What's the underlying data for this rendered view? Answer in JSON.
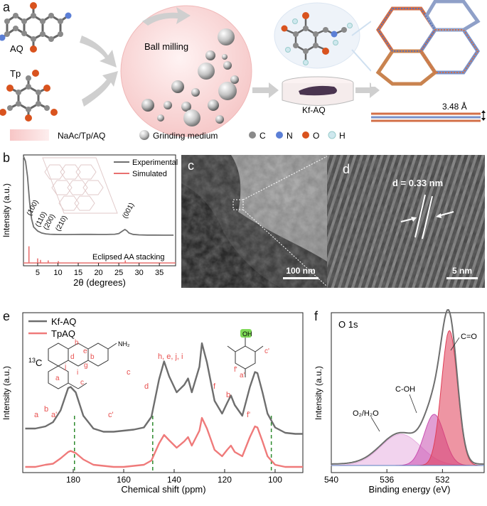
{
  "figure": {
    "panel_a": {
      "label": "a",
      "mol_aq": "AQ",
      "mol_tp": "Tp",
      "process": "Ball milling",
      "product": "Kf-AQ",
      "stack_spacing": "3.48 Å",
      "legend": {
        "mixture": "NaAc/Tp/AQ",
        "medium": "Grinding medium",
        "atoms": [
          "C",
          "N",
          "O",
          "H"
        ]
      },
      "colors": {
        "C": "#8a8a8a",
        "N": "#5b7fd6",
        "O": "#d9531e",
        "H": "#cfe8ee"
      }
    },
    "panel_b": {
      "label": "b"
    },
    "panel_c": {
      "label": "c",
      "scalebar": "100 nm"
    },
    "panel_d": {
      "label": "d",
      "spacing": "d = 0.33 nm",
      "scalebar": "5 nm"
    },
    "panel_e": {
      "label": "e",
      "nucleus": "13C",
      "structure_label_c": "c",
      "peak_labels": [
        "a",
        "b",
        "a'",
        "c'",
        "c",
        "d",
        "h, e, j, i",
        "f",
        "b",
        "f'"
      ],
      "atom_labels": [
        "h",
        "e",
        "b",
        "d",
        "g",
        "j",
        "i",
        "a",
        "c",
        "f'",
        "a'",
        "c'"
      ],
      "oh_label": "OH",
      "nh2_label": "NH₂"
    },
    "panel_f": {
      "label": "f",
      "region": "O 1s"
    }
  },
  "chart_data": [
    {
      "type": "line",
      "panel": "b",
      "xlabel": "2θ (degrees)",
      "ylabel": "Intensity (a.u.)",
      "xlim": [
        1.5,
        39
      ],
      "xticks": [
        5,
        10,
        15,
        20,
        25,
        30,
        35
      ],
      "legend_position": "top-right",
      "series": [
        {
          "name": "Experimental",
          "color": "#6f6f6f",
          "x": [
            1.5,
            2.0,
            2.5,
            3.0,
            3.5,
            4.0,
            5.0,
            6.0,
            7.0,
            8.0,
            9.0,
            10.0,
            12.0,
            14.0,
            16.0,
            18.0,
            20.0,
            22.0,
            24.0,
            25.0,
            26.0,
            26.5,
            27.0,
            27.5,
            28.5,
            30.0,
            32.0,
            34.0,
            36.0,
            38.5
          ],
          "y": [
            1.0,
            0.95,
            0.8,
            0.55,
            0.38,
            0.3,
            0.26,
            0.24,
            0.232,
            0.228,
            0.227,
            0.226,
            0.225,
            0.226,
            0.227,
            0.227,
            0.226,
            0.226,
            0.228,
            0.235,
            0.262,
            0.275,
            0.262,
            0.24,
            0.227,
            0.222,
            0.22,
            0.22,
            0.219,
            0.219
          ]
        },
        {
          "name": "Simulated",
          "color": "#e8706f",
          "peaks_x": [
            2.85,
            5.0,
            5.7,
            7.6,
            10.1,
            26.6
          ],
          "peaks_y": [
            0.165,
            0.045,
            0.03,
            0.025,
            0.018,
            0.025
          ]
        }
      ],
      "peak_labels": [
        {
          "x": 2.9,
          "text": "(100)"
        },
        {
          "x": 5.0,
          "text": "(110)"
        },
        {
          "x": 7.0,
          "text": "(200)"
        },
        {
          "x": 10.0,
          "text": "(210)"
        },
        {
          "x": 26.5,
          "text": "(001)"
        }
      ],
      "annotation": "Eclipsed AA stacking"
    },
    {
      "type": "line",
      "panel": "e",
      "xlabel": "Chemical shift (ppm)",
      "ylabel": "Intensity (a.u.)",
      "xlim": [
        200,
        89
      ],
      "xticks": [
        180,
        160,
        140,
        120,
        100
      ],
      "legend_position": "top-left",
      "series": [
        {
          "name": "Kf-AQ",
          "color": "#6e6e6e",
          "x": [
            199,
            195,
            191,
            188,
            185,
            182,
            181,
            179,
            176,
            172,
            168,
            164,
            160,
            156,
            152,
            149,
            146,
            144,
            142,
            139,
            136,
            134.5,
            133,
            130,
            129,
            127,
            124,
            121,
            119,
            117.5,
            116,
            113,
            110,
            108,
            107,
            105,
            103,
            100,
            96,
            92,
            89
          ],
          "y": [
            0.16,
            0.16,
            0.18,
            0.22,
            0.33,
            0.54,
            0.55,
            0.5,
            0.28,
            0.16,
            0.13,
            0.13,
            0.14,
            0.15,
            0.17,
            0.27,
            0.62,
            0.79,
            0.65,
            0.5,
            0.57,
            0.63,
            0.5,
            0.74,
            0.96,
            0.78,
            0.42,
            0.3,
            0.4,
            0.47,
            0.38,
            0.28,
            0.55,
            0.69,
            0.68,
            0.5,
            0.3,
            0.17,
            0.12,
            0.11,
            0.11
          ]
        },
        {
          "name": "TpAQ",
          "color": "#ef7a7a",
          "x": [
            199,
            195,
            191,
            188,
            185,
            182,
            181,
            179,
            176,
            172,
            168,
            164,
            160,
            156,
            152,
            149,
            146,
            144,
            142,
            139,
            136,
            134.5,
            133,
            130,
            129,
            127,
            124,
            121,
            119,
            117.5,
            116,
            113,
            110,
            108,
            107,
            105,
            103,
            100,
            96,
            92,
            89
          ],
          "y": [
            0.0,
            0.0,
            0.02,
            0.03,
            0.08,
            0.14,
            0.15,
            0.13,
            0.07,
            0.02,
            0.01,
            0.0,
            0.0,
            0.01,
            0.02,
            0.06,
            0.22,
            0.3,
            0.25,
            0.18,
            0.24,
            0.28,
            0.2,
            0.34,
            0.46,
            0.36,
            0.16,
            0.1,
            0.16,
            0.2,
            0.14,
            0.1,
            0.28,
            0.38,
            0.37,
            0.24,
            0.1,
            0.02,
            0.0,
            0.0,
            0.0
          ]
        }
      ],
      "reference_lines_ppm": [
        179.5,
        148.5,
        101.5
      ]
    },
    {
      "type": "area",
      "panel": "f",
      "xlabel": "Binding energy (eV)",
      "ylabel": "Intensity (a.u.)",
      "xlim": [
        540,
        529
      ],
      "xticks": [
        540,
        536,
        532
      ],
      "components": [
        {
          "name": "O₂/H₂O",
          "center": 535.0,
          "fwhm": 3.4,
          "height": 0.22,
          "color": "#e7aee0"
        },
        {
          "name": "C-OH",
          "center": 532.6,
          "fwhm": 1.7,
          "height": 0.36,
          "color": "#c94fb1"
        },
        {
          "name": "C=O",
          "center": 531.5,
          "fwhm": 1.35,
          "height": 0.95,
          "color": "#e03e57"
        }
      ]
    }
  ]
}
